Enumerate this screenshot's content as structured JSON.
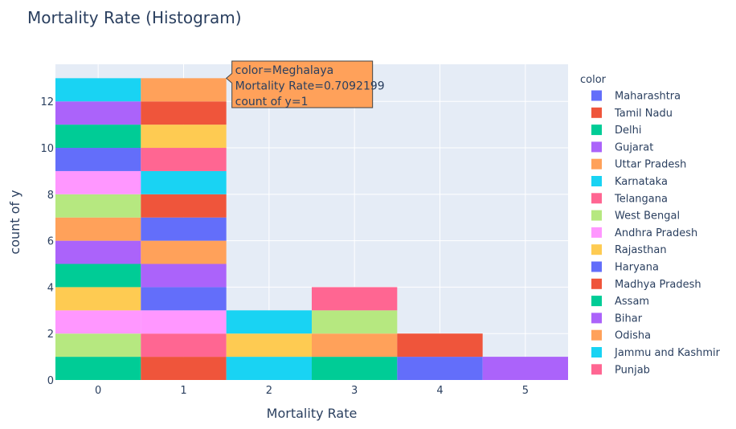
{
  "chart_data": {
    "type": "bar",
    "barmode": "stack",
    "title": "Mortality Rate (Histogram)",
    "xlabel": "Mortality Rate",
    "ylabel": "count of y",
    "x_bins": [
      0,
      1,
      2,
      3,
      4,
      5
    ],
    "xlim": [
      -0.5,
      5.5
    ],
    "ylim": [
      0,
      13.6
    ],
    "x_ticks": [
      0,
      1,
      2,
      3,
      4,
      5
    ],
    "y_ticks": [
      0,
      2,
      4,
      6,
      8,
      10,
      12
    ],
    "grid": true,
    "legend": {
      "title": "color",
      "position": "right",
      "entries": [
        {
          "name": "Maharashtra",
          "color": "#636efa"
        },
        {
          "name": "Tamil Nadu",
          "color": "#ef553b"
        },
        {
          "name": "Delhi",
          "color": "#00cc96"
        },
        {
          "name": "Gujarat",
          "color": "#ab63fa"
        },
        {
          "name": "Uttar Pradesh",
          "color": "#ffa15a"
        },
        {
          "name": "Karnataka",
          "color": "#19d3f3"
        },
        {
          "name": "Telangana",
          "color": "#ff6692"
        },
        {
          "name": "West Bengal",
          "color": "#b6e880"
        },
        {
          "name": "Andhra Pradesh",
          "color": "#ff97ff"
        },
        {
          "name": "Rajasthan",
          "color": "#fecb52"
        },
        {
          "name": "Haryana",
          "color": "#636efa"
        },
        {
          "name": "Madhya Pradesh",
          "color": "#ef553b"
        },
        {
          "name": "Assam",
          "color": "#00cc96"
        },
        {
          "name": "Bihar",
          "color": "#ab63fa"
        },
        {
          "name": "Odisha",
          "color": "#ffa15a"
        },
        {
          "name": "Jammu and Kashmir",
          "color": "#19d3f3"
        },
        {
          "name": "Punjab",
          "color": "#ff6692"
        }
      ]
    },
    "stacks": [
      {
        "bin": 0,
        "segments": [
          "#00cc96",
          "#b6e880",
          "#ff97ff",
          "#fecb52",
          "#00cc96",
          "#ab63fa",
          "#ffa15a",
          "#b6e880",
          "#ff97ff",
          "#636efa",
          "#00cc96",
          "#ab63fa",
          "#19d3f3"
        ]
      },
      {
        "bin": 1,
        "segments": [
          "#ef553b",
          "#ff6692",
          "#ff97ff",
          "#636efa",
          "#ab63fa",
          "#ffa15a",
          "#636efa",
          "#ef553b",
          "#19d3f3",
          "#ff6692",
          "#fecb52",
          "#ef553b",
          "#ffa15a"
        ]
      },
      {
        "bin": 2,
        "segments": [
          "#19d3f3",
          "#fecb52",
          "#19d3f3"
        ]
      },
      {
        "bin": 3,
        "segments": [
          "#00cc96",
          "#ffa15a",
          "#b6e880",
          "#ff6692"
        ]
      },
      {
        "bin": 4,
        "segments": [
          "#636efa",
          "#ef553b"
        ]
      },
      {
        "bin": 5,
        "segments": [
          "#ab63fa"
        ]
      }
    ],
    "tooltip": {
      "lines": [
        "color=Meghalaya",
        "Mortality Rate=0.7092199",
        "count of y=1"
      ],
      "bin": 1,
      "y": 13,
      "background": "#ffa15a"
    }
  },
  "colors": {
    "plot_background": "#e5ecf6",
    "gridline": "#ffffff",
    "text": "#2a3f5f"
  }
}
